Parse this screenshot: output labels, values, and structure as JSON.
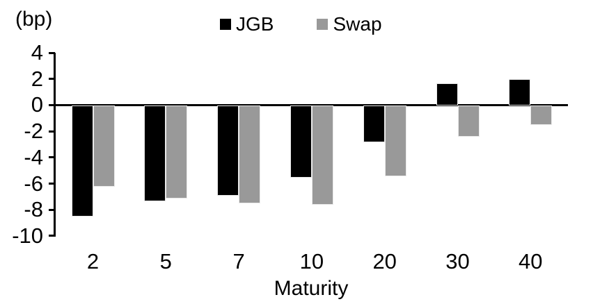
{
  "chart_data": {
    "type": "bar",
    "title": "",
    "unit_label": "(bp)",
    "xlabel": "Maturity",
    "categories": [
      "2",
      "5",
      "7",
      "10",
      "20",
      "30",
      "40"
    ],
    "series": [
      {
        "name": "JGB",
        "color": "#000000",
        "values": [
          -8.5,
          -7.3,
          -6.9,
          -5.5,
          -2.8,
          1.7,
          2.0
        ]
      },
      {
        "name": "Swap",
        "color": "#999999",
        "values": [
          -6.2,
          -7.1,
          -7.5,
          -7.6,
          -5.4,
          -2.4,
          -1.5
        ]
      }
    ],
    "ylim": [
      -10,
      4
    ],
    "yticks": [
      "4",
      "2",
      "0",
      "-2",
      "-4",
      "-6",
      "-8",
      "-10"
    ],
    "grid": false,
    "legend_position": "top-center",
    "background_color": "#ffffff",
    "axis_color": "#000000"
  }
}
